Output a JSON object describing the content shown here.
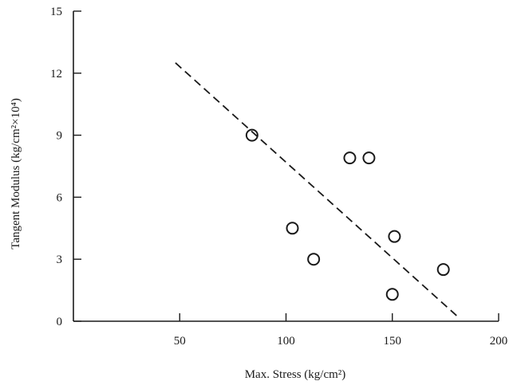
{
  "chart_data": {
    "type": "scatter",
    "title": "",
    "xlabel": "Max. Stress (kg/cm²)",
    "ylabel": "Tangent Modulus (kg/cm²×10⁴)",
    "xlim": [
      0,
      200
    ],
    "ylim": [
      0,
      15
    ],
    "x_ticks": [
      50,
      100,
      150,
      200
    ],
    "x_tick_labels": [
      "50",
      "100",
      "150",
      "200"
    ],
    "y_ticks": [
      0,
      3,
      6,
      9,
      12,
      15
    ],
    "y_tick_labels": [
      "0",
      "3",
      "6",
      "9",
      "12",
      "15"
    ],
    "grid": false,
    "legend": "none",
    "series": [
      {
        "marker": "open-circle",
        "points": [
          {
            "x": 84,
            "y": 9.0
          },
          {
            "x": 103,
            "y": 4.5
          },
          {
            "x": 113,
            "y": 3.0
          },
          {
            "x": 130,
            "y": 7.9
          },
          {
            "x": 139,
            "y": 7.9
          },
          {
            "x": 151,
            "y": 4.1
          },
          {
            "x": 150,
            "y": 1.3
          },
          {
            "x": 174,
            "y": 2.5
          }
        ]
      }
    ],
    "trend_line": {
      "style": "dashed",
      "from": {
        "x": 48,
        "y": 12.5
      },
      "to": {
        "x": 181,
        "y": 0.2
      }
    },
    "colors": {
      "ink": "#1a1a1a",
      "background": "#ffffff"
    }
  }
}
